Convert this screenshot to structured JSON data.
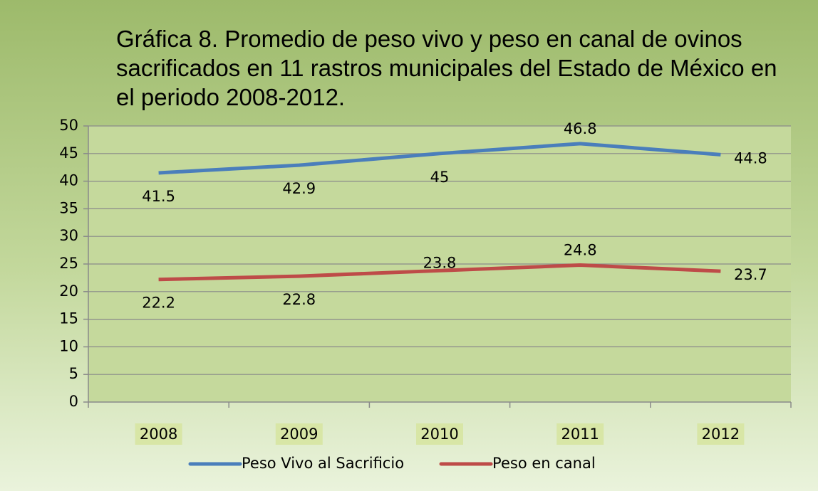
{
  "chart_data": {
    "type": "line",
    "title": "Gráfica 8.   Promedio de peso vivo y peso en canal de ovinos sacrificados en 11 rastros municipales del Estado de México en el periodo 2008-2012.",
    "categories": [
      "2008",
      "2009",
      "2010",
      "2011",
      "2012"
    ],
    "series": [
      {
        "name": "Peso Vivo al Sacrificio",
        "color": "#4a7ebb",
        "values": [
          41.5,
          42.9,
          45,
          46.8,
          44.8
        ]
      },
      {
        "name": "Peso en canal",
        "color": "#be4b48",
        "values": [
          22.2,
          22.8,
          23.8,
          24.8,
          23.7
        ]
      }
    ],
    "ylim": [
      0,
      50
    ],
    "yticks": [
      0,
      5,
      10,
      15,
      20,
      25,
      30,
      35,
      40,
      45,
      50
    ],
    "grid": true,
    "legend": "bottom"
  }
}
